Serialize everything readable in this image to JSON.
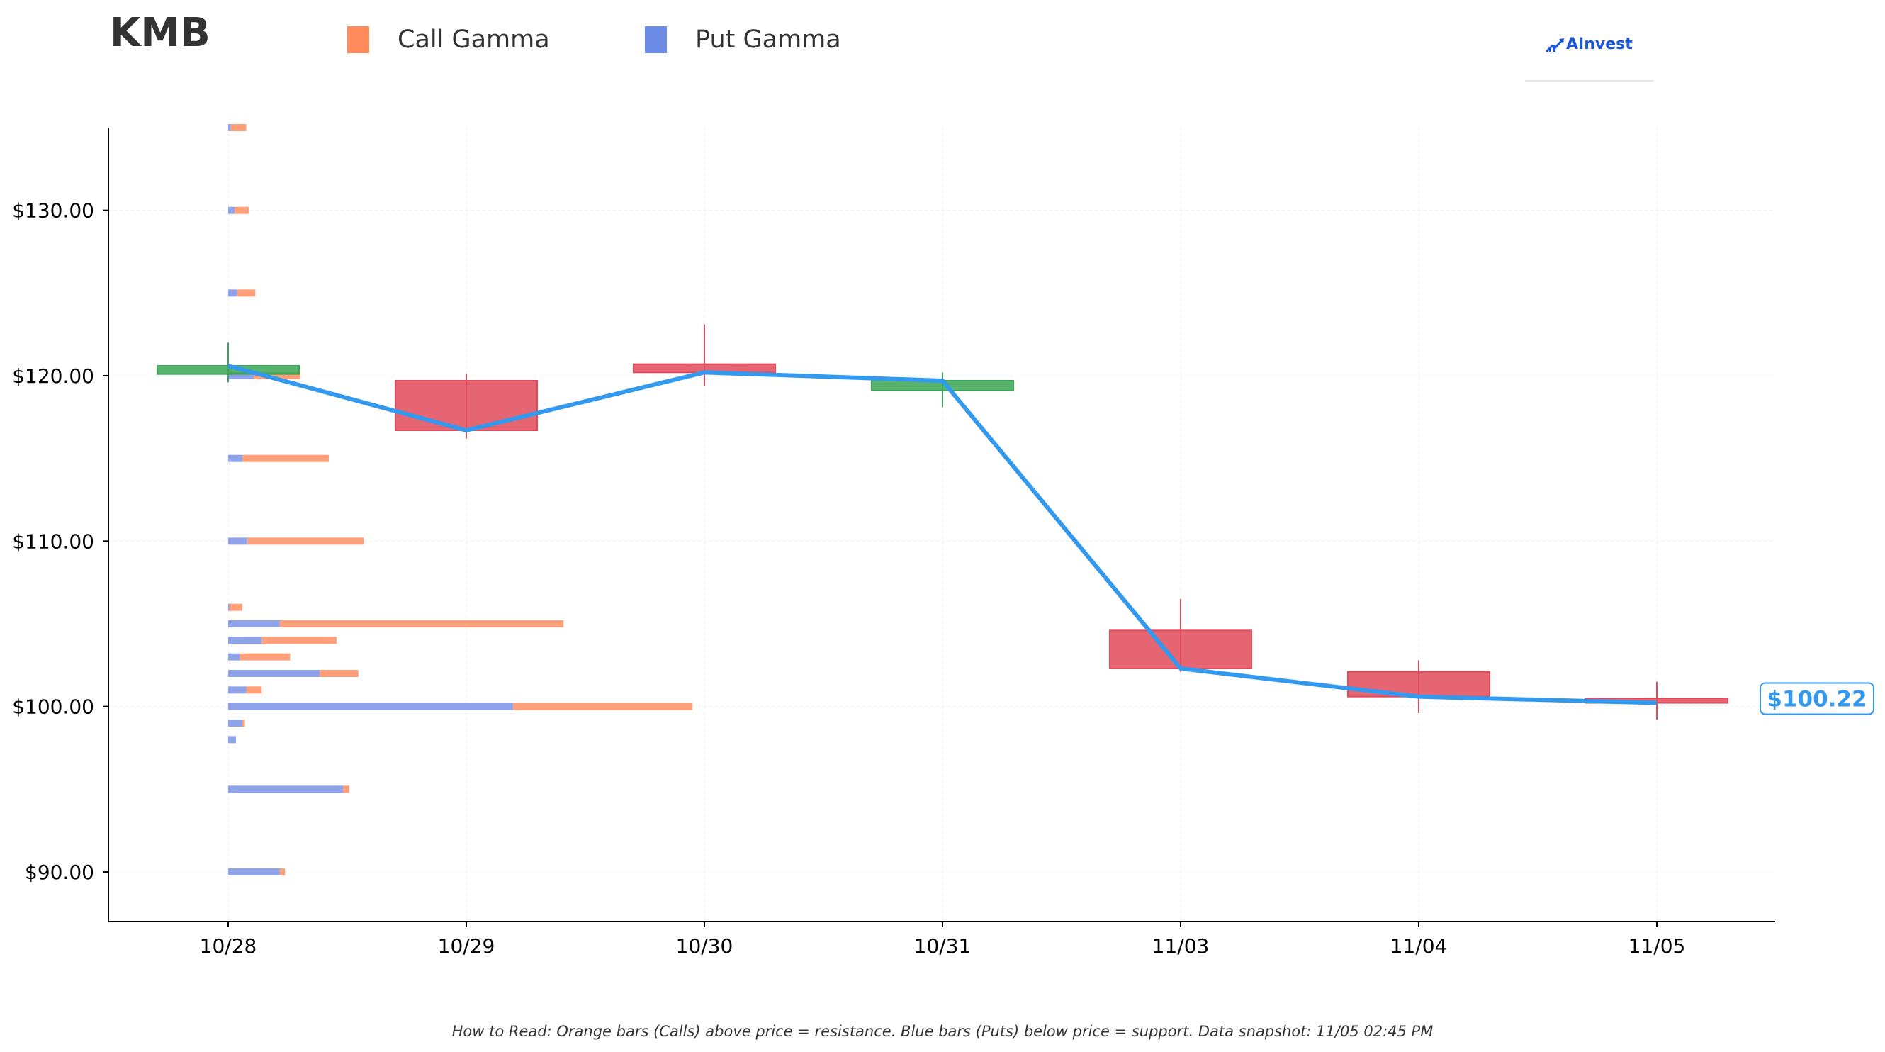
{
  "header": {
    "ticker": "KMB",
    "brand": "AInvest"
  },
  "legend": [
    {
      "label": "Call Gamma",
      "color": "#ff8c5a"
    },
    {
      "label": "Put Gamma",
      "color": "#6b8be6"
    }
  ],
  "footnote": "How to Read: Orange bars (Calls) above price = resistance. Blue bars (Puts) below price = support. Data snapshot: 11/05 02:45 PM",
  "chart_data": {
    "type": "candlestick",
    "title": "KMB",
    "ylim": [
      87,
      135
    ],
    "y_ticks": [
      90,
      100,
      110,
      120,
      130
    ],
    "y_tick_labels": [
      "$90.00",
      "$100.00",
      "$110.00",
      "$120.00",
      "$130.00"
    ],
    "grid": true,
    "legend_position": "top",
    "colors": {
      "up": "#3aa655",
      "down": "#e04a5a",
      "close_line": "#3399ee",
      "call": "#ffa07a",
      "put": "#8ea3ea"
    },
    "categories": [
      "10/28",
      "10/29",
      "10/30",
      "10/31",
      "11/03",
      "11/04",
      "11/05"
    ],
    "candles": [
      {
        "date": "10/28",
        "open": 120.1,
        "high": 122.0,
        "low": 119.6,
        "close": 120.6
      },
      {
        "date": "10/29",
        "open": 119.7,
        "high": 120.1,
        "low": 116.2,
        "close": 116.7
      },
      {
        "date": "10/30",
        "open": 120.7,
        "high": 123.1,
        "low": 119.4,
        "close": 120.2
      },
      {
        "date": "10/31",
        "open": 119.1,
        "high": 120.2,
        "low": 118.1,
        "close": 119.7
      },
      {
        "date": "11/03",
        "open": 104.6,
        "high": 106.5,
        "low": 102.1,
        "close": 102.3
      },
      {
        "date": "11/04",
        "open": 102.1,
        "high": 102.8,
        "low": 99.6,
        "close": 100.6
      },
      {
        "date": "11/05",
        "open": 100.5,
        "high": 101.5,
        "low": 99.2,
        "close": 100.22
      }
    ],
    "close_series": {
      "name": "Close",
      "values": [
        120.6,
        116.7,
        120.2,
        119.7,
        102.3,
        100.6,
        100.22
      ]
    },
    "last_price_label": "$100.22",
    "gamma_levels": [
      {
        "strike": 135,
        "put": 0.02,
        "call": 0.14
      },
      {
        "strike": 130,
        "put": 0.05,
        "call": 0.16
      },
      {
        "strike": 125,
        "put": 0.07,
        "call": 0.21
      },
      {
        "strike": 120,
        "put": 0.2,
        "call": 0.56
      },
      {
        "strike": 115,
        "put": 0.11,
        "call": 0.78
      },
      {
        "strike": 110,
        "put": 0.15,
        "call": 1.05
      },
      {
        "strike": 106,
        "put": 0.01,
        "call": 0.11
      },
      {
        "strike": 105,
        "put": 0.4,
        "call": 2.6
      },
      {
        "strike": 104,
        "put": 0.26,
        "call": 0.84
      },
      {
        "strike": 103,
        "put": 0.09,
        "call": 0.48
      },
      {
        "strike": 102,
        "put": 0.71,
        "call": 1.01
      },
      {
        "strike": 101,
        "put": 0.14,
        "call": 0.26
      },
      {
        "strike": 100,
        "put": 2.21,
        "call": 3.6
      },
      {
        "strike": 99,
        "put": 0.11,
        "call": 0.13
      },
      {
        "strike": 98,
        "put": 0.06,
        "call": 0.06
      },
      {
        "strike": 95,
        "put": 0.89,
        "call": 0.94
      },
      {
        "strike": 90,
        "put": 0.4,
        "call": 0.44
      }
    ]
  }
}
